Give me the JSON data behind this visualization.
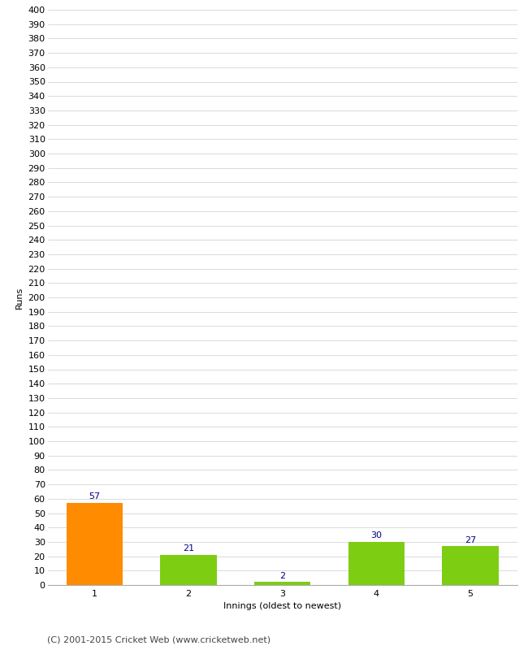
{
  "categories": [
    "1",
    "2",
    "3",
    "4",
    "5"
  ],
  "values": [
    57,
    21,
    2,
    30,
    27
  ],
  "bar_colors": [
    "#ff8c00",
    "#7dce13",
    "#7dce13",
    "#7dce13",
    "#7dce13"
  ],
  "xlabel": "Innings (oldest to newest)",
  "ylabel": "Runs",
  "ylim": [
    0,
    400
  ],
  "label_color": "#00008b",
  "label_fontsize": 8,
  "axis_fontsize": 8,
  "grid_color": "#cccccc",
  "background_color": "#ffffff",
  "footer": "(C) 2001-2015 Cricket Web (www.cricketweb.net)"
}
